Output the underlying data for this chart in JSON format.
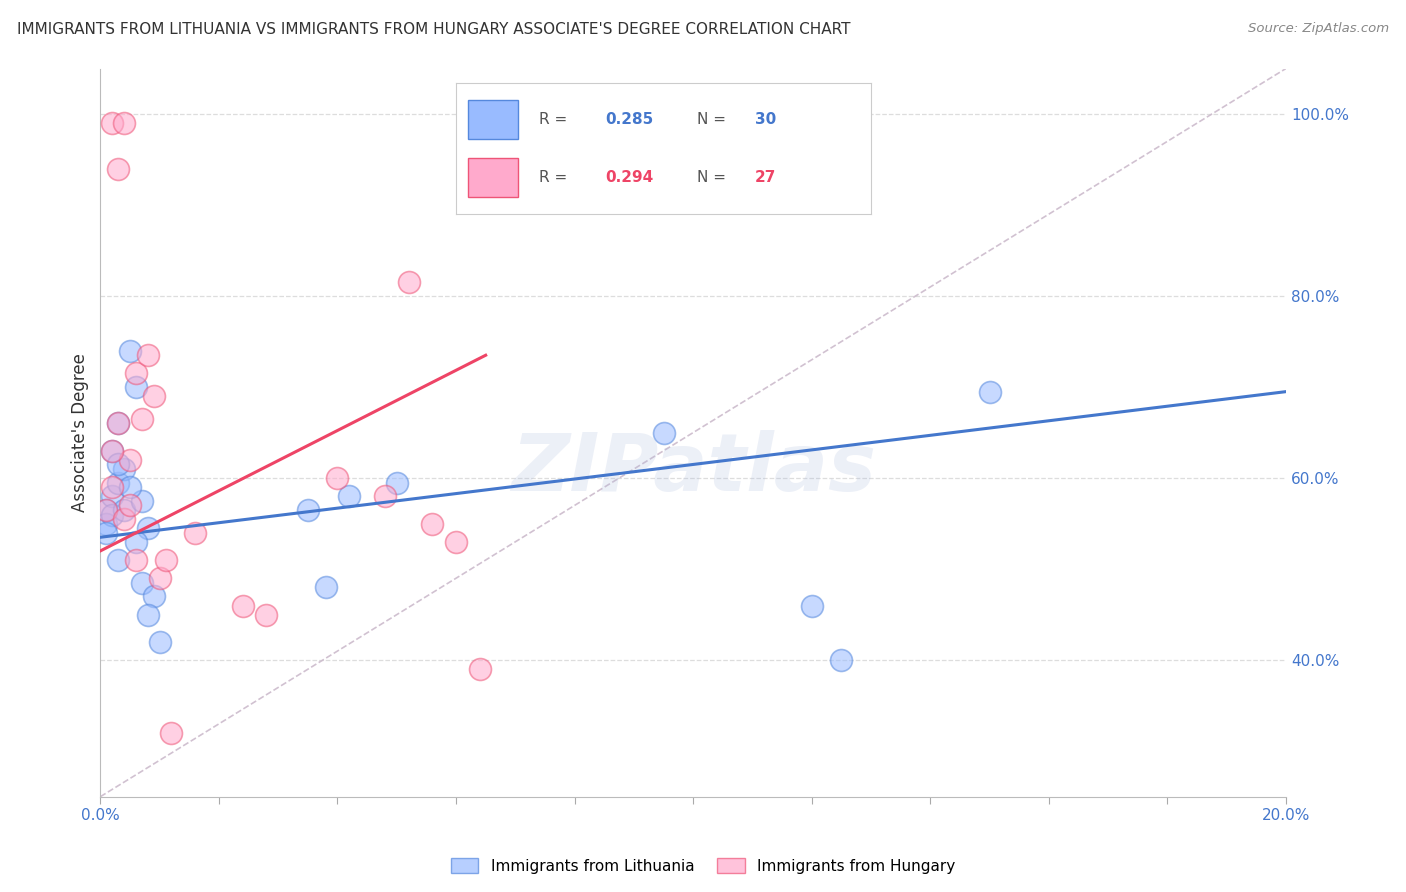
{
  "title": "IMMIGRANTS FROM LITHUANIA VS IMMIGRANTS FROM HUNGARY ASSOCIATE'S DEGREE CORRELATION CHART",
  "source": "Source: ZipAtlas.com",
  "ylabel": "Associate's Degree",
  "xlim": [
    0.0,
    0.2
  ],
  "ylim": [
    0.25,
    1.05
  ],
  "x_tick_positions": [
    0.0,
    0.02,
    0.04,
    0.06,
    0.08,
    0.1,
    0.12,
    0.14,
    0.16,
    0.18,
    0.2
  ],
  "x_tick_labels": [
    "0.0%",
    "",
    "",
    "",
    "",
    "",
    "",
    "",
    "",
    "",
    "20.0%"
  ],
  "y_tick_positions": [
    0.4,
    0.6,
    0.8,
    1.0
  ],
  "y_tick_labels": [
    "40.0%",
    "60.0%",
    "80.0%",
    "100.0%"
  ],
  "color_blue": "#99BBFF",
  "color_pink": "#FFAACC",
  "color_blue_edge": "#5588DD",
  "color_pink_edge": "#EE5577",
  "color_blue_line": "#4477CC",
  "color_pink_line": "#EE4466",
  "color_diag": "#CCBBCC",
  "watermark": "ZIPatlas",
  "watermark_color": "#AABBDD",
  "lithuania_x": [
    0.001,
    0.002,
    0.001,
    0.003,
    0.004,
    0.002,
    0.001,
    0.003,
    0.002,
    0.003,
    0.005,
    0.006,
    0.004,
    0.007,
    0.008,
    0.006,
    0.005,
    0.007,
    0.003,
    0.009,
    0.008,
    0.01,
    0.038,
    0.042,
    0.095,
    0.12,
    0.125,
    0.15,
    0.035,
    0.05
  ],
  "lithuania_y": [
    0.565,
    0.58,
    0.55,
    0.595,
    0.61,
    0.56,
    0.54,
    0.51,
    0.63,
    0.66,
    0.74,
    0.7,
    0.565,
    0.575,
    0.545,
    0.53,
    0.59,
    0.485,
    0.615,
    0.47,
    0.45,
    0.42,
    0.48,
    0.58,
    0.65,
    0.46,
    0.4,
    0.695,
    0.565,
    0.595
  ],
  "hungary_x": [
    0.001,
    0.002,
    0.003,
    0.002,
    0.004,
    0.005,
    0.002,
    0.003,
    0.004,
    0.005,
    0.006,
    0.007,
    0.008,
    0.009,
    0.006,
    0.01,
    0.011,
    0.04,
    0.048,
    0.052,
    0.056,
    0.024,
    0.028,
    0.06,
    0.064,
    0.012,
    0.016
  ],
  "hungary_y": [
    0.565,
    0.59,
    0.94,
    0.99,
    0.99,
    0.62,
    0.63,
    0.66,
    0.555,
    0.57,
    0.715,
    0.665,
    0.735,
    0.69,
    0.51,
    0.49,
    0.51,
    0.6,
    0.58,
    0.815,
    0.55,
    0.46,
    0.45,
    0.53,
    0.39,
    0.32,
    0.54
  ],
  "blue_line_x": [
    0.0,
    0.2
  ],
  "blue_line_y": [
    0.535,
    0.695
  ],
  "pink_line_x": [
    0.0,
    0.065
  ],
  "pink_line_y": [
    0.52,
    0.735
  ],
  "diag_line_x": [
    0.0,
    0.2
  ],
  "diag_line_y": [
    0.25,
    1.05
  ],
  "background_color": "#FFFFFF",
  "grid_color": "#DDDDDD",
  "tick_color": "#4477CC"
}
